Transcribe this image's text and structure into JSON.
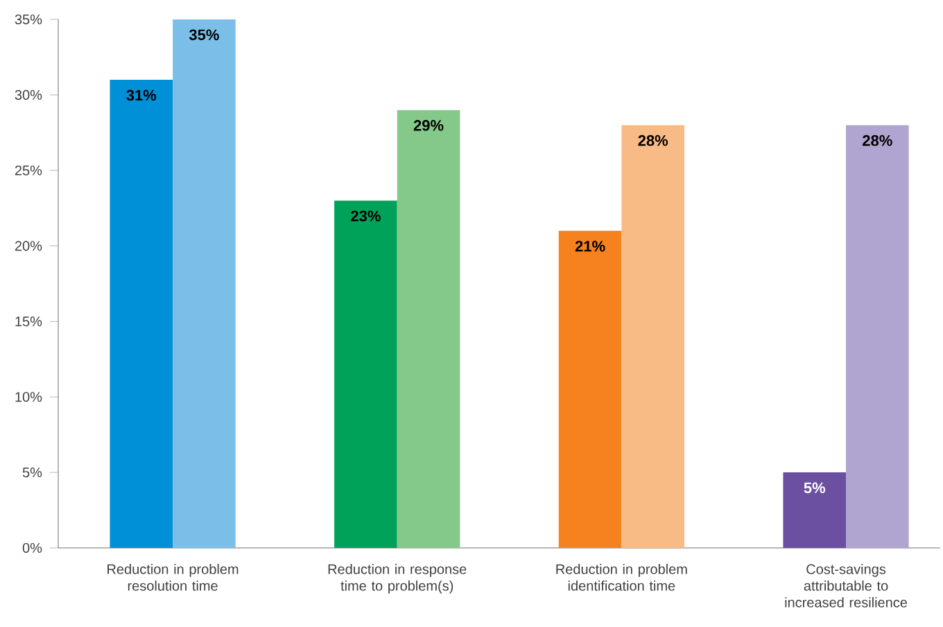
{
  "chart_data": {
    "type": "bar",
    "categories": [
      "Reduction in problem resolution time",
      "Reduction in response time to problem(s)",
      "Reduction in problem identification time",
      "Cost-savings attributable to increased resilience"
    ],
    "series": [
      {
        "colors": [
          "#0090d8",
          "#00a25a",
          "#f5821f",
          "#6b4fa0"
        ],
        "values": [
          31,
          23,
          21,
          5
        ],
        "value_labels": [
          "31%",
          "23%",
          "21%",
          "5%"
        ]
      },
      {
        "colors": [
          "#7bbfe8",
          "#85c98a",
          "#f9bb85",
          "#b0a4d0"
        ],
        "values": [
          35,
          29,
          28,
          28
        ],
        "value_labels": [
          "35%",
          "29%",
          "28%",
          "28%"
        ]
      }
    ],
    "ylim": [
      0,
      35
    ],
    "yticks": [
      {
        "value": 0,
        "label": "0%"
      },
      {
        "value": 5,
        "label": "5%"
      },
      {
        "value": 10,
        "label": "10%"
      },
      {
        "value": 15,
        "label": "15%"
      },
      {
        "value": 20,
        "label": "20%"
      },
      {
        "value": 25,
        "label": "25%"
      },
      {
        "value": 30,
        "label": "30%"
      },
      {
        "value": 35,
        "label": "35%"
      }
    ],
    "grid": false
  }
}
